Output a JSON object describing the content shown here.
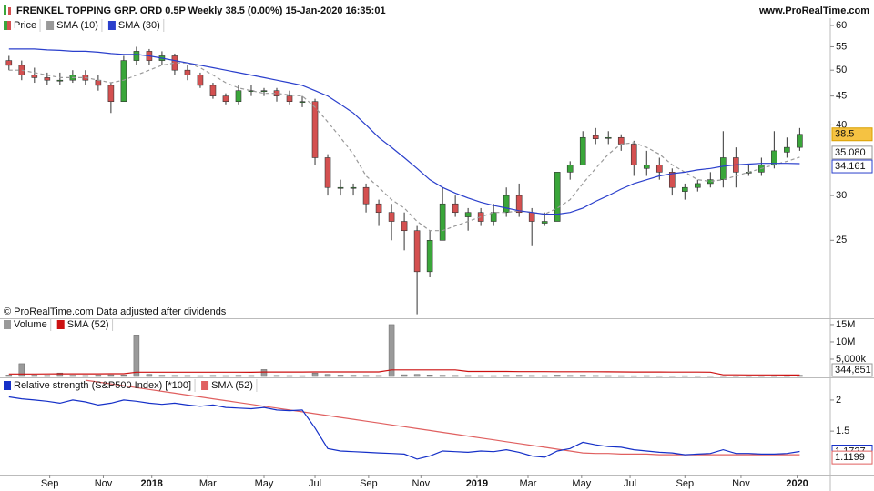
{
  "chart_data": [
    {
      "type": "candlestick",
      "title": "FRENKEL TOPPING GRP. ORD 0.5P Weekly 38.5 (0.00%) 15-Jan-2020 16:35:01",
      "source": "www.ProRealTime.com",
      "note": "© ProRealTime.com  Data adjusted after dividends",
      "name": "Price",
      "up_color": "#3aa63a",
      "down_color": "#d45050",
      "xlim": [
        -0.7,
        64.4
      ],
      "ylim": [
        18.2,
        61.8
      ],
      "log": true,
      "yticks": [
        60,
        55,
        50,
        45,
        40,
        30,
        25
      ],
      "open": [
        52,
        51,
        49,
        48.5,
        48,
        48,
        49,
        48,
        47,
        44,
        52,
        54,
        52,
        53,
        50,
        49,
        47,
        45,
        44,
        46,
        46,
        46,
        45,
        44,
        44,
        35,
        31,
        31,
        31,
        29,
        28,
        27,
        26,
        22,
        25,
        29,
        27.5,
        28,
        27,
        28,
        30,
        28,
        26.8,
        27,
        33,
        34,
        38.3,
        38,
        38,
        37,
        33.5,
        34,
        33,
        30.5,
        31,
        31.5,
        32,
        35,
        33,
        33,
        34,
        35.8,
        36.5
      ],
      "high": [
        53,
        52,
        50.5,
        49.5,
        49.5,
        50,
        50,
        49,
        47.5,
        53,
        55,
        54.5,
        54,
        53.5,
        51,
        49.5,
        47.5,
        45.5,
        47,
        47,
        46.5,
        46.5,
        46,
        45,
        44.5,
        35.5,
        32,
        31.5,
        31.5,
        29.5,
        29,
        28,
        26.5,
        26,
        31,
        30,
        28.5,
        28.5,
        29,
        31,
        31.5,
        28.5,
        28,
        33,
        34.5,
        39,
        39.5,
        39,
        38.5,
        37.5,
        36,
        35,
        33.5,
        31.5,
        32,
        33,
        39,
        36.5,
        34,
        35,
        39,
        38,
        39.5
      ],
      "low": [
        50,
        48,
        47.5,
        47,
        47,
        47.5,
        47,
        46,
        42,
        44,
        51,
        51,
        51,
        49,
        48,
        46.5,
        44.5,
        43.5,
        43.5,
        45,
        45,
        44,
        43.5,
        43,
        34,
        30,
        30,
        30,
        28,
        26.5,
        25,
        24,
        18.5,
        21.5,
        25,
        27.5,
        26,
        26.5,
        26.5,
        27.5,
        27.5,
        24.5,
        26.5,
        27,
        32,
        34,
        37,
        37,
        36,
        32.5,
        32.5,
        32,
        30,
        29.5,
        30.5,
        31,
        31,
        31,
        32.5,
        32.5,
        33.5,
        35,
        36
      ],
      "close": [
        51,
        49,
        48.5,
        48,
        48,
        49,
        48,
        47,
        44,
        52,
        54,
        52,
        53,
        50,
        49,
        47,
        45,
        44,
        46,
        46,
        46,
        45,
        44,
        44,
        35,
        31,
        31,
        31,
        29,
        28,
        27,
        26,
        22,
        25,
        29,
        28,
        28,
        27,
        28,
        30,
        28,
        27,
        27,
        33,
        34,
        38,
        37.8,
        38,
        37,
        34,
        34,
        33,
        31,
        31,
        31.5,
        32,
        35,
        33,
        33,
        34,
        36,
        36.5,
        38.5
      ],
      "series": [
        {
          "name": "SMA (10)",
          "color": "#999999",
          "dashed": true,
          "last_label": "35.080",
          "values": [
            50,
            50,
            49.5,
            49,
            48.5,
            48.5,
            48.5,
            48,
            47.5,
            48,
            49,
            50,
            51,
            51.5,
            51.5,
            50.5,
            49,
            47.5,
            46.5,
            46,
            45.5,
            45.5,
            45.2,
            45,
            43,
            40.5,
            38,
            35.5,
            32.5,
            31,
            29.5,
            28.5,
            27,
            26,
            26,
            26.5,
            27,
            27.5,
            28,
            28,
            28.2,
            28,
            27.8,
            28.5,
            29.5,
            31.5,
            33.5,
            35.5,
            37,
            37.2,
            36.5,
            35.5,
            34,
            33,
            32,
            31.8,
            32,
            32.5,
            33,
            33.5,
            34,
            34.5,
            35.08
          ]
        },
        {
          "name": "SMA (30)",
          "color": "#2a3fcc",
          "dashed": false,
          "last_label": "34.161",
          "values": [
            54.5,
            54.5,
            54.5,
            54.3,
            54.2,
            54,
            54,
            53.8,
            53.5,
            53.3,
            53.3,
            53,
            52.5,
            52,
            51.5,
            51,
            50.5,
            50,
            49.5,
            49,
            48.5,
            48,
            47.5,
            47,
            46,
            45,
            43.5,
            42,
            40,
            38,
            36.5,
            35,
            33.5,
            32,
            31,
            30.3,
            29.7,
            29.2,
            28.8,
            28.5,
            28.2,
            28,
            27.8,
            27.8,
            28,
            28.5,
            29.3,
            30,
            30.8,
            31.5,
            32,
            32.5,
            32.8,
            33,
            33.3,
            33.5,
            33.8,
            34,
            34.1,
            34.2,
            34.2,
            34.2,
            34.161
          ]
        }
      ]
    },
    {
      "type": "bar",
      "name": "Volume",
      "color": "#9a9a9a",
      "last_label": "344,851",
      "xlim": [
        -0.7,
        64.4
      ],
      "ylim": [
        0,
        16300000
      ],
      "yticks": [
        {
          "value": 15000000,
          "label": "15M"
        },
        {
          "value": 10000000,
          "label": "10M"
        },
        {
          "value": 5000000,
          "label": "5,000k"
        }
      ],
      "values": [
        420000,
        3700000,
        380000,
        300000,
        1000000,
        350000,
        280000,
        400000,
        500000,
        450000,
        12000000,
        600000,
        350000,
        300000,
        280000,
        250000,
        300000,
        260000,
        320000,
        280000,
        2000000,
        300000,
        260000,
        240000,
        1000000,
        600000,
        400000,
        350000,
        300000,
        280000,
        15000000,
        500000,
        600000,
        450000,
        350000,
        300000,
        280000,
        260000,
        250000,
        300000,
        350000,
        280000,
        260000,
        400000,
        300000,
        350000,
        280000,
        260000,
        240000,
        220000,
        250000,
        200000,
        180000,
        220000,
        200000,
        150000,
        180000,
        160000,
        200000,
        150000,
        250000,
        300000,
        344851
      ],
      "series": [
        {
          "name": "SMA (52)",
          "color": "#cc1111",
          "dashed": false,
          "values": [
            700000,
            720000,
            720000,
            730000,
            760000,
            760000,
            760000,
            770000,
            780000,
            790000,
            1230000,
            1240000,
            1240000,
            1240000,
            1240000,
            1230000,
            1230000,
            1230000,
            1230000,
            1220000,
            1290000,
            1290000,
            1280000,
            1280000,
            1310000,
            1320000,
            1320000,
            1320000,
            1320000,
            1320000,
            1890000,
            1890000,
            1900000,
            1900000,
            1900000,
            1900000,
            1450000,
            1440000,
            1440000,
            1440000,
            1400000,
            1390000,
            1390000,
            1380000,
            1380000,
            1370000,
            1360000,
            1340000,
            1320000,
            1300000,
            1300000,
            1280000,
            1270000,
            1260000,
            1250000,
            1240000,
            480000,
            470000,
            460000,
            450000,
            440000,
            430000,
            420000
          ]
        }
      ]
    },
    {
      "type": "line",
      "name": "Relative strength (S&P500 Index) [*100]",
      "color": "#1530c8",
      "last_label": "1.1727",
      "xlim": [
        -0.7,
        64.4
      ],
      "ylim": [
        0.8,
        2.35
      ],
      "yticks": [
        2,
        1.5
      ],
      "xticks": [
        {
          "value": 3.2,
          "label": "Sep"
        },
        {
          "value": 7.4,
          "label": "Nov"
        },
        {
          "value": 11.2,
          "label": "2018"
        },
        {
          "value": 15.6,
          "label": "Mar"
        },
        {
          "value": 20,
          "label": "May"
        },
        {
          "value": 24,
          "label": "Jul"
        },
        {
          "value": 28.2,
          "label": "Sep"
        },
        {
          "value": 32.3,
          "label": "Nov"
        },
        {
          "value": 36.7,
          "label": "2019"
        },
        {
          "value": 40.7,
          "label": "Mar"
        },
        {
          "value": 44.9,
          "label": "May"
        },
        {
          "value": 48.7,
          "label": "Jul"
        },
        {
          "value": 53,
          "label": "Sep"
        },
        {
          "value": 57.4,
          "label": "Nov"
        },
        {
          "value": 61.8,
          "label": "2020"
        }
      ],
      "values": [
        2.05,
        2.02,
        2.0,
        1.98,
        1.95,
        2.0,
        1.97,
        1.92,
        1.95,
        2.0,
        1.98,
        1.95,
        1.93,
        1.95,
        1.92,
        1.9,
        1.92,
        1.88,
        1.87,
        1.86,
        1.88,
        1.84,
        1.83,
        1.84,
        1.55,
        1.22,
        1.18,
        1.17,
        1.16,
        1.15,
        1.14,
        1.13,
        1.05,
        1.1,
        1.18,
        1.17,
        1.16,
        1.18,
        1.17,
        1.2,
        1.16,
        1.1,
        1.08,
        1.18,
        1.22,
        1.32,
        1.28,
        1.25,
        1.24,
        1.2,
        1.18,
        1.16,
        1.15,
        1.12,
        1.13,
        1.14,
        1.2,
        1.14,
        1.14,
        1.13,
        1.13,
        1.14,
        1.1727
      ],
      "series": [
        {
          "name": "SMA (52)",
          "color": "#e06060",
          "dashed": false,
          "last_label": "1.1199",
          "values": [
            null,
            null,
            null,
            null,
            null,
            null,
            2.32,
            2.29,
            2.26,
            2.23,
            2.2,
            2.17,
            2.14,
            2.11,
            2.08,
            2.05,
            2.02,
            1.99,
            1.96,
            1.93,
            1.9,
            1.87,
            1.84,
            1.81,
            1.78,
            1.75,
            1.72,
            1.69,
            1.66,
            1.63,
            1.6,
            1.57,
            1.54,
            1.51,
            1.48,
            1.45,
            1.42,
            1.39,
            1.36,
            1.33,
            1.3,
            1.27,
            1.24,
            1.21,
            1.18,
            1.15,
            1.14,
            1.14,
            1.13,
            1.13,
            1.13,
            1.12,
            1.12,
            1.12,
            1.12,
            1.12,
            1.12,
            1.12,
            1.12,
            1.12,
            1.12,
            1.12,
            1.1199
          ]
        }
      ]
    }
  ]
}
